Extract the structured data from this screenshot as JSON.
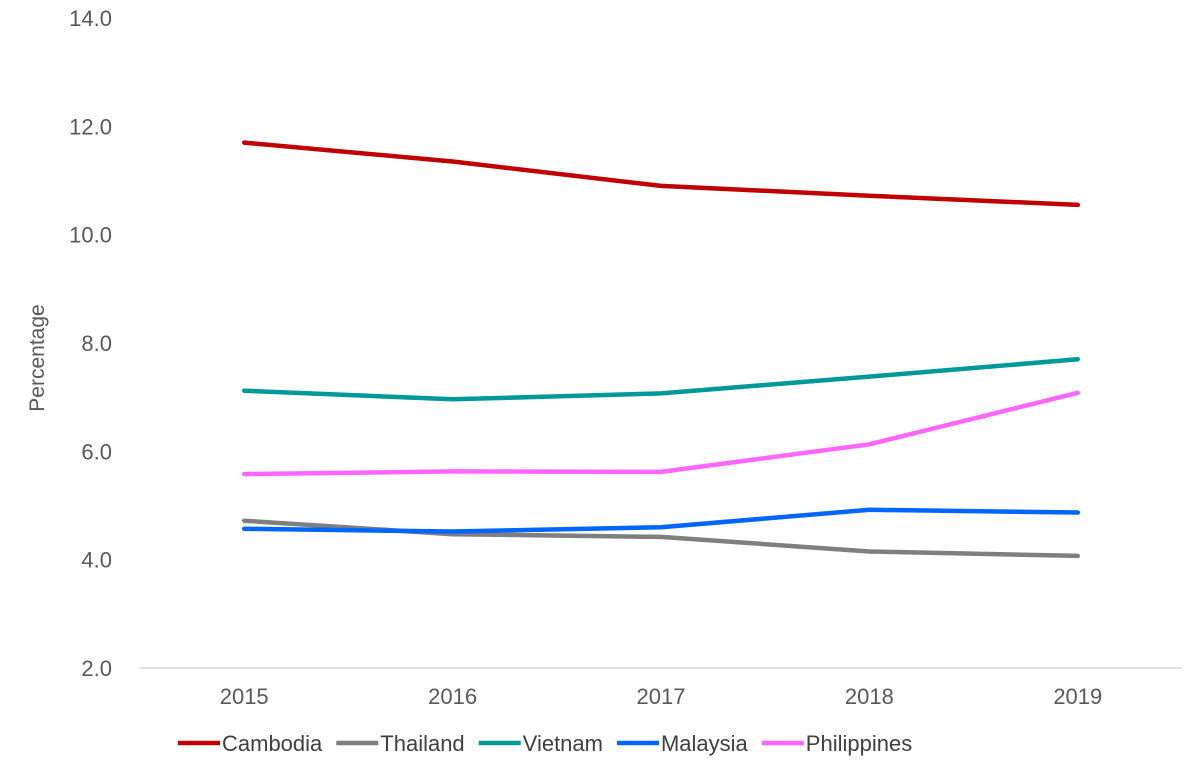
{
  "chart_data": {
    "type": "line",
    "title": "",
    "xlabel": "",
    "ylabel": "Percentage",
    "categories": [
      "2015",
      "2016",
      "2017",
      "2018",
      "2019"
    ],
    "ylim": [
      2.0,
      14.0
    ],
    "yticks": [
      "2.0",
      "4.0",
      "6.0",
      "8.0",
      "10.0",
      "12.0",
      "14.0"
    ],
    "grid": false,
    "legend_position": "bottom",
    "series": [
      {
        "name": "Cambodia",
        "color": "#C00000",
        "values": [
          11.7,
          11.35,
          10.9,
          10.72,
          10.55
        ]
      },
      {
        "name": "Thailand",
        "color": "#7F7F7F",
        "values": [
          4.72,
          4.47,
          4.42,
          4.15,
          4.07
        ]
      },
      {
        "name": "Vietnam",
        "color": "#009999",
        "values": [
          7.12,
          6.96,
          7.07,
          7.38,
          7.7
        ]
      },
      {
        "name": "Malaysia",
        "color": "#0066FF",
        "values": [
          4.57,
          4.52,
          4.6,
          4.92,
          4.87
        ]
      },
      {
        "name": "Philippines",
        "color": "#FF66FF",
        "values": [
          5.58,
          5.63,
          5.62,
          6.13,
          7.08
        ]
      }
    ]
  }
}
